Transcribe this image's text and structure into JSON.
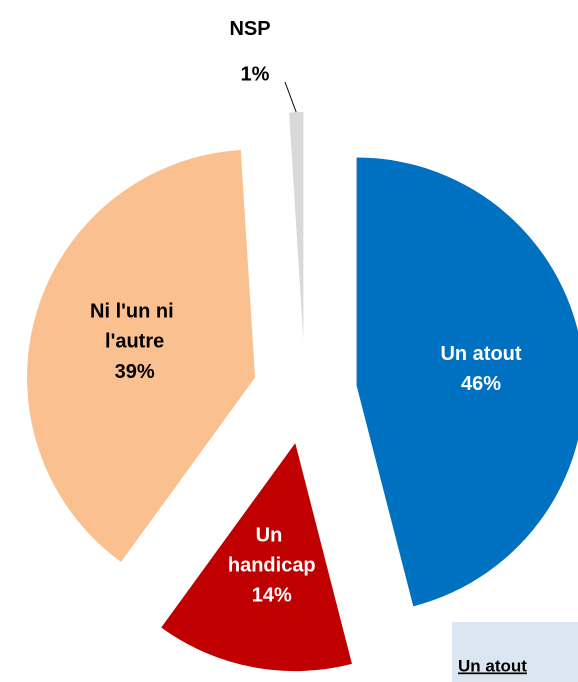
{
  "chart_data": {
    "type": "pie",
    "categories": [
      "Un atout",
      "Un handicap",
      "Ni l'un ni l'autre",
      "NSP"
    ],
    "values": [
      46,
      14,
      39,
      1
    ],
    "value_labels": [
      "46%",
      "14%",
      "39%",
      "1%"
    ],
    "colors": [
      "#0070C0",
      "#C00000",
      "#FAC090",
      "#D9D9D9"
    ],
    "annotation": "Un atout"
  }
}
